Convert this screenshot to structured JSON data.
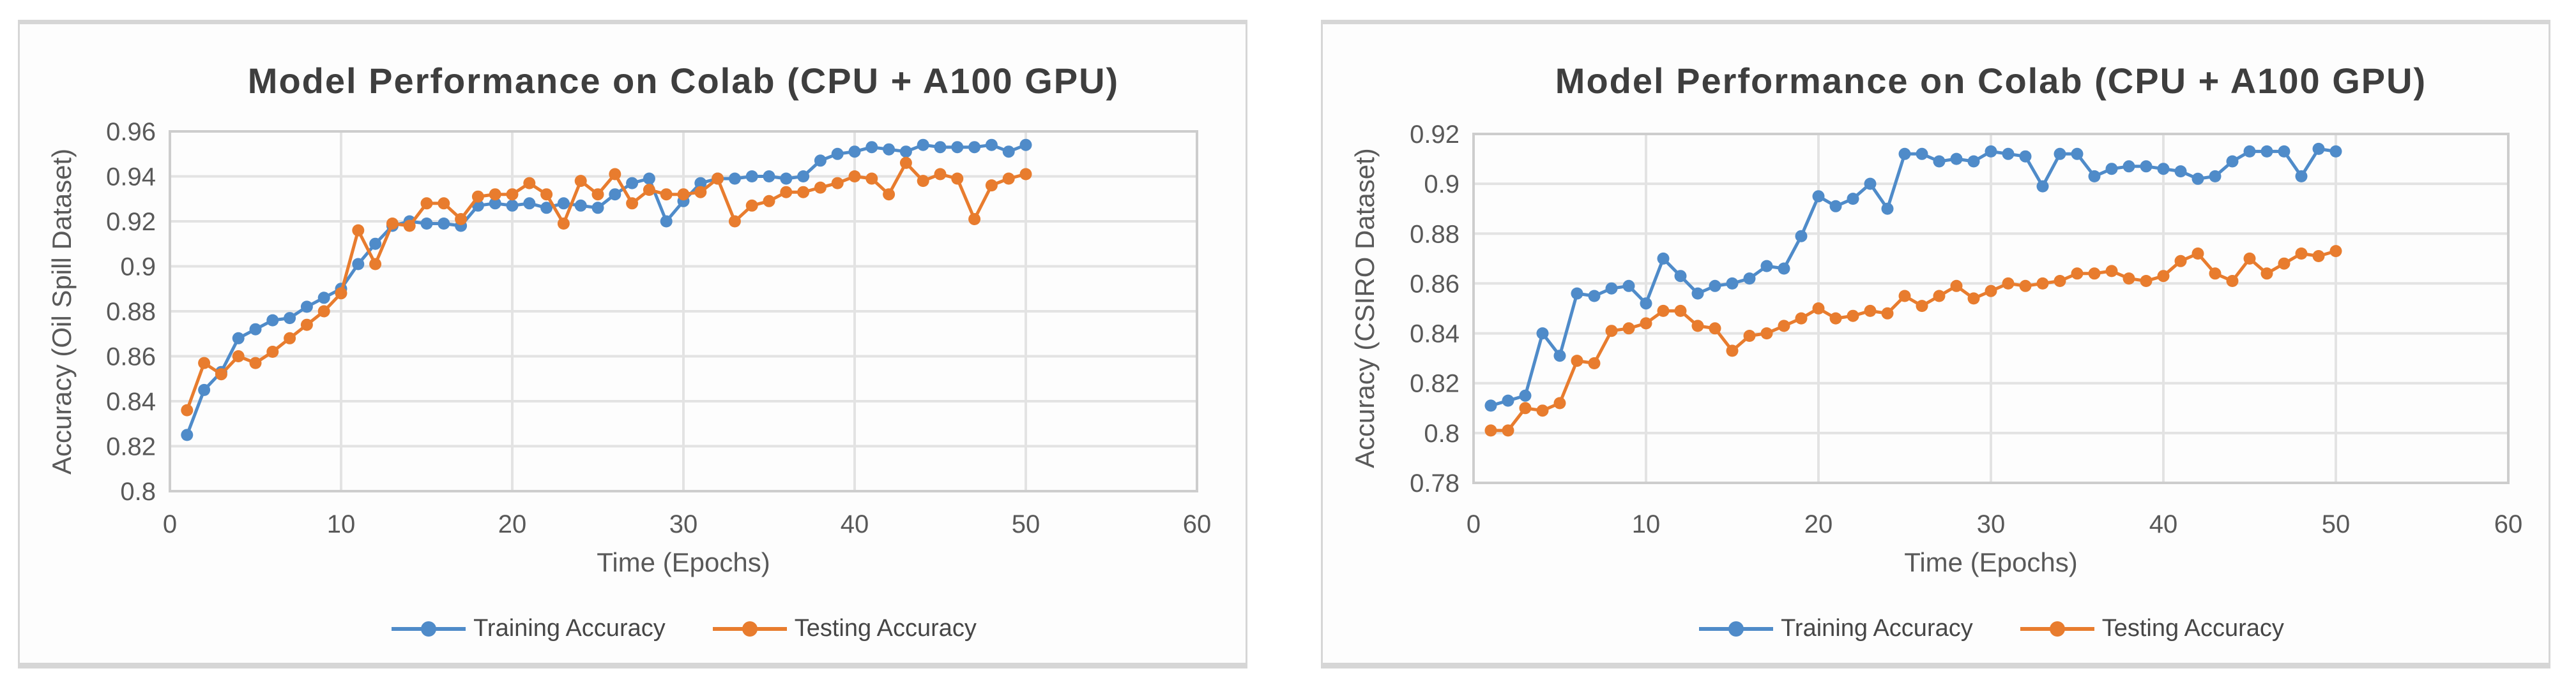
{
  "page": {
    "background": "#ffffff",
    "panel_border_color": "#d6d6d6"
  },
  "chart_data": [
    {
      "type": "line",
      "title": "Model Performance on Colab (CPU + A100 GPU)",
      "xlabel": "Time (Epochs)",
      "ylabel": "Accuracy (Oil Spill Dataset)",
      "xlim": [
        0,
        60
      ],
      "ylim": [
        0.8,
        0.96
      ],
      "xticks": [
        0,
        10,
        20,
        30,
        40,
        50,
        60
      ],
      "xtick_labels": [
        "0",
        "10",
        "20",
        "30",
        "40",
        "50",
        "60"
      ],
      "yticks": [
        0.8,
        0.82,
        0.84,
        0.86,
        0.88,
        0.9,
        0.92,
        0.94,
        0.96
      ],
      "ytick_labels": [
        "0.8",
        "0.82",
        "0.84",
        "0.86",
        "0.88",
        "0.9",
        "0.92",
        "0.94",
        "0.96"
      ],
      "grid": true,
      "legend_position": "bottom",
      "grid_color": "#e3e3e3",
      "x": [
        1,
        2,
        3,
        4,
        5,
        6,
        7,
        8,
        9,
        10,
        11,
        12,
        13,
        14,
        15,
        16,
        17,
        18,
        19,
        20,
        21,
        22,
        23,
        24,
        25,
        26,
        27,
        28,
        29,
        30,
        31,
        32,
        33,
        34,
        35,
        36,
        37,
        38,
        39,
        40,
        41,
        42,
        43,
        44,
        45,
        46,
        47,
        48,
        49,
        50
      ],
      "series": [
        {
          "name": "Training Accuracy",
          "color": "#4f8bc9",
          "marker": "circle",
          "values": [
            0.825,
            0.845,
            0.853,
            0.868,
            0.872,
            0.876,
            0.877,
            0.882,
            0.886,
            0.89,
            0.901,
            0.91,
            0.918,
            0.92,
            0.919,
            0.919,
            0.918,
            0.927,
            0.928,
            0.927,
            0.928,
            0.926,
            0.928,
            0.927,
            0.926,
            0.932,
            0.937,
            0.939,
            0.92,
            0.929,
            0.937,
            0.939,
            0.939,
            0.94,
            0.94,
            0.939,
            0.94,
            0.947,
            0.95,
            0.951,
            0.953,
            0.952,
            0.951,
            0.954,
            0.953,
            0.953,
            0.953,
            0.954,
            0.951,
            0.954
          ]
        },
        {
          "name": "Testing Accuracy",
          "color": "#e87c2e",
          "marker": "circle",
          "values": [
            0.836,
            0.857,
            0.852,
            0.86,
            0.857,
            0.862,
            0.868,
            0.874,
            0.88,
            0.888,
            0.916,
            0.901,
            0.919,
            0.918,
            0.928,
            0.928,
            0.921,
            0.931,
            0.932,
            0.932,
            0.937,
            0.932,
            0.919,
            0.938,
            0.932,
            0.941,
            0.928,
            0.934,
            0.932,
            0.932,
            0.933,
            0.939,
            0.92,
            0.927,
            0.929,
            0.933,
            0.933,
            0.935,
            0.937,
            0.94,
            0.939,
            0.932,
            0.946,
            0.938,
            0.941,
            0.939,
            0.921,
            0.936,
            0.939,
            0.941
          ]
        }
      ]
    },
    {
      "type": "line",
      "title": "Model Performance on Colab (CPU + A100 GPU)",
      "xlabel": "Time (Epochs)",
      "ylabel": "Accuracy (CSIRO Dataset)",
      "xlim": [
        0,
        60
      ],
      "ylim": [
        0.78,
        0.92
      ],
      "xticks": [
        0,
        10,
        20,
        30,
        40,
        50,
        60
      ],
      "xtick_labels": [
        "0",
        "10",
        "20",
        "30",
        "40",
        "50",
        "60"
      ],
      "yticks": [
        0.78,
        0.8,
        0.82,
        0.84,
        0.86,
        0.88,
        0.9,
        0.92
      ],
      "ytick_labels": [
        "0.78",
        "0.8",
        "0.82",
        "0.84",
        "0.86",
        "0.88",
        "0.9",
        "0.92"
      ],
      "grid": true,
      "legend_position": "bottom",
      "grid_color": "#e3e3e3",
      "x": [
        1,
        2,
        3,
        4,
        5,
        6,
        7,
        8,
        9,
        10,
        11,
        12,
        13,
        14,
        15,
        16,
        17,
        18,
        19,
        20,
        21,
        22,
        23,
        24,
        25,
        26,
        27,
        28,
        29,
        30,
        31,
        32,
        33,
        34,
        35,
        36,
        37,
        38,
        39,
        40,
        41,
        42,
        43,
        44,
        45,
        46,
        47,
        48,
        49,
        50
      ],
      "series": [
        {
          "name": "Training Accuracy",
          "color": "#4f8bc9",
          "marker": "circle",
          "values": [
            0.811,
            0.813,
            0.815,
            0.84,
            0.831,
            0.856,
            0.855,
            0.858,
            0.859,
            0.852,
            0.87,
            0.863,
            0.856,
            0.859,
            0.86,
            0.862,
            0.867,
            0.866,
            0.879,
            0.895,
            0.891,
            0.894,
            0.9,
            0.89,
            0.912,
            0.912,
            0.909,
            0.91,
            0.909,
            0.913,
            0.912,
            0.911,
            0.899,
            0.912,
            0.912,
            0.903,
            0.906,
            0.907,
            0.907,
            0.906,
            0.905,
            0.902,
            0.903,
            0.909,
            0.913,
            0.913,
            0.913,
            0.903,
            0.914,
            0.913
          ]
        },
        {
          "name": "Testing Accuracy",
          "color": "#e87c2e",
          "marker": "circle",
          "values": [
            0.801,
            0.801,
            0.81,
            0.809,
            0.812,
            0.829,
            0.828,
            0.841,
            0.842,
            0.844,
            0.849,
            0.849,
            0.843,
            0.842,
            0.833,
            0.839,
            0.84,
            0.843,
            0.846,
            0.85,
            0.846,
            0.847,
            0.849,
            0.848,
            0.855,
            0.851,
            0.855,
            0.859,
            0.854,
            0.857,
            0.86,
            0.859,
            0.86,
            0.861,
            0.864,
            0.864,
            0.865,
            0.862,
            0.861,
            0.863,
            0.869,
            0.872,
            0.864,
            0.861,
            0.87,
            0.864,
            0.868,
            0.872,
            0.871,
            0.873
          ]
        }
      ]
    }
  ]
}
